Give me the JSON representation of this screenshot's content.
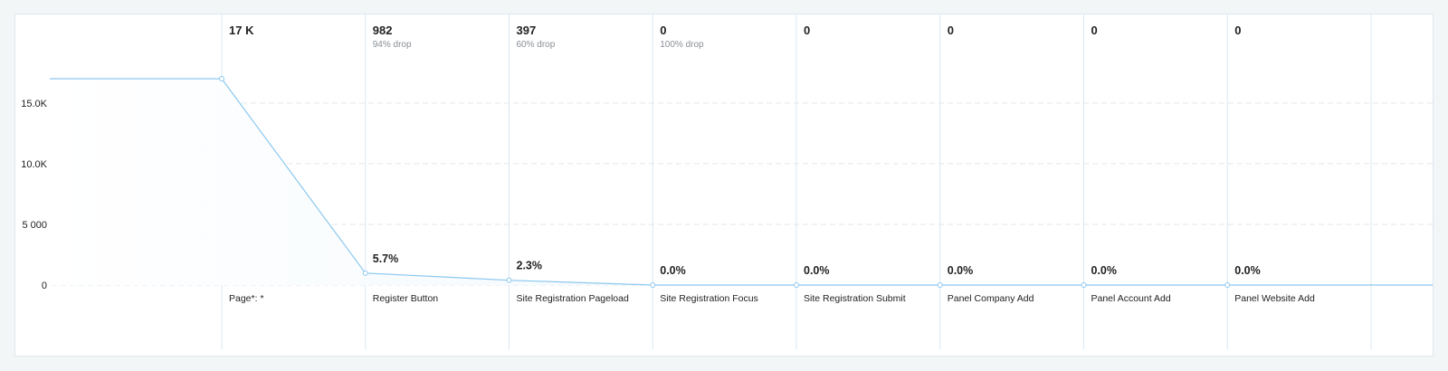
{
  "chart_data": {
    "type": "area",
    "title": "",
    "xlabel": "",
    "ylabel": "",
    "ylim": [
      0,
      17500
    ],
    "yticks": [
      {
        "value": 0,
        "label": "0"
      },
      {
        "value": 5000,
        "label": "5 000"
      },
      {
        "value": 10000,
        "label": "10.0K"
      },
      {
        "value": 15000,
        "label": "15.0K"
      }
    ],
    "grid": true,
    "steps": [
      {
        "name": "Page*: *",
        "count": 17000,
        "count_label": "17 K",
        "drop": "",
        "conversion": ""
      },
      {
        "name": "Register Button",
        "count": 982,
        "count_label": "982",
        "drop": "94% drop",
        "conversion": "5.7%"
      },
      {
        "name": "Site Registration Pageload",
        "count": 397,
        "count_label": "397",
        "drop": "60% drop",
        "conversion": "2.3%"
      },
      {
        "name": "Site Registration Focus",
        "count": 0,
        "count_label": "0",
        "drop": "100% drop",
        "conversion": "0.0%"
      },
      {
        "name": "Site Registration Submit",
        "count": 0,
        "count_label": "0",
        "drop": "",
        "conversion": "0.0%"
      },
      {
        "name": "Panel Company Add",
        "count": 0,
        "count_label": "0",
        "drop": "",
        "conversion": "0.0%"
      },
      {
        "name": "Panel Account Add",
        "count": 0,
        "count_label": "0",
        "drop": "",
        "conversion": "0.0%"
      },
      {
        "name": "Panel Website Add",
        "count": 0,
        "count_label": "0",
        "drop": "",
        "conversion": "0.0%"
      }
    ],
    "colors": {
      "line": "#8cc8ee",
      "area": "#e6f3fc",
      "divider": "#d8e8f3",
      "grid": "#e2e6ea",
      "label": "#222222",
      "sublabel": "#8a8f96"
    }
  }
}
